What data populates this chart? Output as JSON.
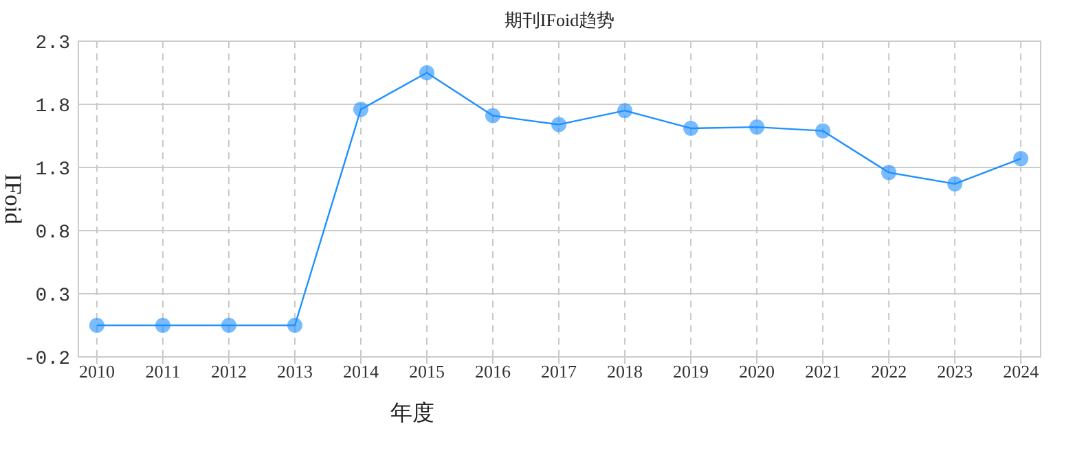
{
  "chart_data": {
    "type": "line",
    "title": "期刊IFoid趋势",
    "xlabel": "年度",
    "ylabel": "IFoid",
    "categories": [
      "2010",
      "2011",
      "2012",
      "2013",
      "2014",
      "2015",
      "2016",
      "2017",
      "2018",
      "2019",
      "2020",
      "2021",
      "2022",
      "2023",
      "2024"
    ],
    "series": [
      {
        "color": "#1e90ff",
        "values": [
          0.05,
          0.05,
          0.05,
          0.05,
          1.76,
          2.05,
          1.71,
          1.64,
          1.75,
          1.61,
          1.62,
          1.59,
          1.26,
          1.17,
          1.37
        ]
      }
    ],
    "ylim": [
      -0.2,
      2.3
    ],
    "yticks": [
      -0.2,
      0.3,
      0.8,
      1.3,
      1.8,
      2.3
    ],
    "grid": true,
    "marker": "circle",
    "line_style": "solid"
  }
}
